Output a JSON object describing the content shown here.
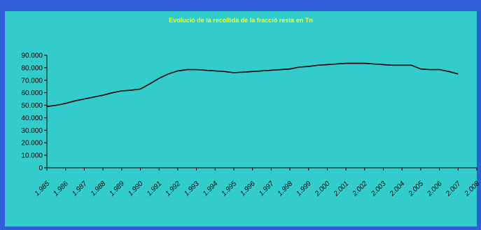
{
  "colors": {
    "page_background": "#2f5fd6",
    "chart_background": "#33cccc",
    "title_color": "#ffff00",
    "line_color": "#000000",
    "axis_color": "#000000"
  },
  "chart_data": {
    "type": "line",
    "title": "Evolució de la recollida de la fracció resta en Tn",
    "xlabel": "",
    "ylabel": "",
    "ylim": [
      0,
      90000
    ],
    "y_ticks": [
      0,
      10000,
      20000,
      30000,
      40000,
      50000,
      60000,
      70000,
      80000,
      90000
    ],
    "y_tick_labels": [
      "0",
      "10.000",
      "20.000",
      "30.000",
      "40.000",
      "50.000",
      "60.000",
      "70.000",
      "80.000",
      "90.000"
    ],
    "categories": [
      "1.985",
      "1.986",
      "1.987",
      "1.988",
      "1.989",
      "1.990",
      "1.991",
      "1.992",
      "1.993",
      "1.994",
      "1.995",
      "1.996",
      "1.997",
      "1.998",
      "1.999",
      "2.000",
      "2.001",
      "2.002",
      "2.003",
      "2.004",
      "2.005",
      "2.006",
      "2.007",
      "2.008"
    ],
    "grid": false,
    "legend": "none",
    "series": [
      {
        "x": [
          1985,
          1985.5,
          1986,
          1986.5,
          1987,
          1987.5,
          1988,
          1988.5,
          1989,
          1989.5,
          1990,
          1990.5,
          1991,
          1991.5,
          1992,
          1992.5,
          1993,
          1993.5,
          1994,
          1994.5,
          1995,
          1995.5,
          1996,
          1996.5,
          1997,
          1997.5,
          1998,
          1998.5,
          1999,
          1999.5,
          2000,
          2000.5,
          2001,
          2001.5,
          2002,
          2002.5,
          2003,
          2003.5,
          2004,
          2004.5,
          2005,
          2005.5,
          2006,
          2006.5,
          2007
        ],
        "values": [
          49000,
          50000,
          51500,
          53500,
          55000,
          56500,
          58000,
          60000,
          61500,
          62000,
          63000,
          67000,
          71500,
          75000,
          77500,
          78500,
          78500,
          78000,
          77500,
          77000,
          76000,
          76500,
          77000,
          77500,
          78000,
          78500,
          79000,
          80500,
          81000,
          82000,
          82500,
          83000,
          83500,
          83500,
          83500,
          83000,
          82500,
          82000,
          82000,
          82000,
          79000,
          78500,
          78500,
          77000,
          75000
        ]
      }
    ]
  }
}
